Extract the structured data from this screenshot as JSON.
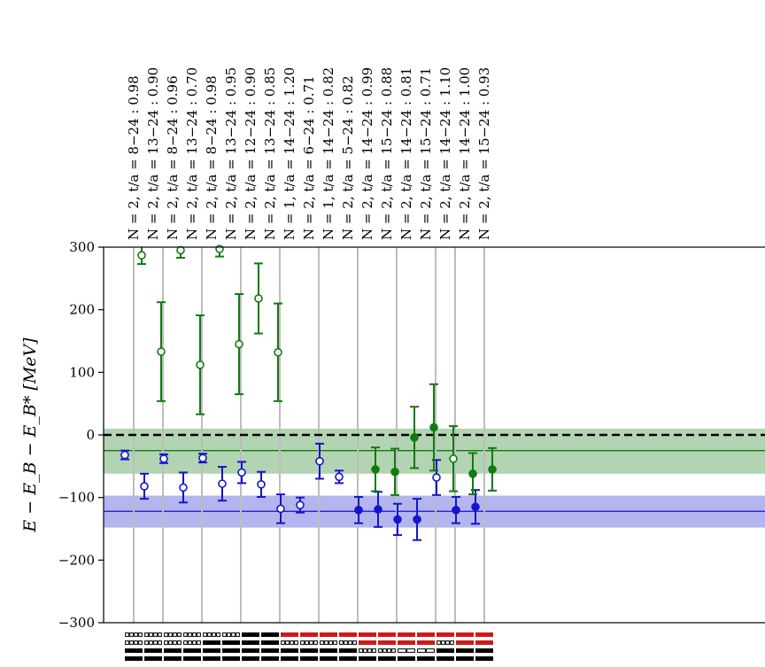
{
  "chart_data": {
    "type": "scatter",
    "ylabel": "E − E_B − E_B* [MeV]",
    "ylim": [
      -300,
      300
    ],
    "yticks": [
      -300,
      -200,
      -100,
      0,
      100,
      200,
      300
    ],
    "ytick_labels": [
      "−300",
      "−200",
      "−100",
      "0",
      "100",
      "200",
      "300"
    ],
    "categories": [
      "N = 2, t/a = 8−24 :  0.98",
      "N = 2, t/a = 13−24 :  0.90",
      "N = 2, t/a = 8−24 :  0.96",
      "N = 2, t/a = 13−24 :  0.70",
      "N = 2, t/a = 8−24 :  0.98",
      "N = 2, t/a = 13−24 :  0.95",
      "N = 2, t/a = 12−24 :  0.90",
      "N = 2, t/a = 13−24 :  0.85",
      "N = 1, t/a = 14−24 :  1.20",
      "N = 2, t/a = 6−24 :  0.71",
      "N = 1, t/a = 14−24 :  0.82",
      "N = 2, t/a = 5−24 :  0.82",
      "N = 2, t/a = 14−24 :  0.99",
      "N = 2, t/a = 15−24 :  0.88",
      "N = 2, t/a = 14−24 :  0.81",
      "N = 2, t/a = 15−24 :  0.71",
      "N = 2, t/a = 14−24 :  1.10",
      "N = 2, t/a = 14−24 :  1.00",
      "N = 2, t/a = 15−24 :  0.93"
    ],
    "series": [
      {
        "color": "#1515cc",
        "points": [
          {
            "y": -32,
            "err": 7,
            "filled": false
          },
          {
            "y": -82,
            "err": 20,
            "filled": false
          },
          {
            "y": -38,
            "err": 7,
            "filled": false
          },
          {
            "y": -84,
            "err": 24,
            "filled": false
          },
          {
            "y": -37,
            "err": 7,
            "filled": false
          },
          {
            "y": -78,
            "err": 27,
            "filled": false
          },
          {
            "y": -60,
            "err": 17,
            "filled": false
          },
          {
            "y": -79,
            "err": 20,
            "filled": false
          },
          {
            "y": -118,
            "err": 23,
            "filled": false
          },
          {
            "y": -112,
            "err": 12,
            "filled": false
          },
          {
            "y": -42,
            "err": 28,
            "filled": false
          },
          {
            "y": -67,
            "err": 10,
            "filled": false
          },
          {
            "y": -120,
            "err": 21,
            "filled": true
          },
          {
            "y": -119,
            "err": 28,
            "filled": true
          },
          {
            "y": -135,
            "err": 25,
            "filled": true
          },
          {
            "y": -135,
            "err": 33,
            "filled": true
          },
          {
            "y": -68,
            "err": 28,
            "filled": false
          },
          {
            "y": -120,
            "err": 21,
            "filled": true
          },
          {
            "y": -115,
            "err": 27,
            "filled": true
          }
        ]
      },
      {
        "color": "#117a11",
        "points": [
          {
            "y": 287,
            "err": 14,
            "filled": false
          },
          {
            "y": 133,
            "err": 79,
            "filled": false
          },
          {
            "y": 295,
            "err": 12,
            "filled": false
          },
          {
            "y": 112,
            "err": 79,
            "filled": false
          },
          {
            "y": 297,
            "err": 12,
            "filled": false
          },
          {
            "y": 145,
            "err": 80,
            "filled": false
          },
          {
            "y": 218,
            "err": 56,
            "filled": false
          },
          {
            "y": 132,
            "err": 78,
            "filled": false
          },
          null,
          null,
          null,
          null,
          {
            "y": -55,
            "err": 35,
            "filled": true
          },
          {
            "y": -59,
            "err": 37,
            "filled": true
          },
          {
            "y": -4,
            "err": 49,
            "filled": true
          },
          {
            "y": 12,
            "err": 69,
            "filled": true
          },
          {
            "y": -38,
            "err": 52,
            "filled": false
          },
          {
            "y": -62,
            "err": 33,
            "filled": true
          },
          {
            "y": -55,
            "err": 34,
            "filled": true
          }
        ]
      }
    ],
    "bands": [
      {
        "color": "#117a11",
        "center": -25,
        "low": -62,
        "high": 10
      },
      {
        "color": "#1515cc",
        "center": -122,
        "low": -148,
        "high": -97
      }
    ],
    "reference_line": {
      "y": 0,
      "style": "dashed",
      "color": "#000000"
    },
    "operator_codes": [
      [
        "w4",
        "w4",
        "b",
        "b"
      ],
      [
        "w4",
        "w4",
        "b",
        "b"
      ],
      [
        "w4",
        "w4",
        "b",
        "b"
      ],
      [
        "w4",
        "w4",
        "b",
        "b"
      ],
      [
        "w4",
        "b",
        "b",
        "b"
      ],
      [
        "w4",
        "b",
        "b",
        "b"
      ],
      [
        "b",
        "b",
        "b",
        "b"
      ],
      [
        "b",
        "b",
        "b",
        "b"
      ],
      [
        "r",
        "w4",
        "b",
        "b"
      ],
      [
        "r",
        "w4",
        "b",
        "b"
      ],
      [
        "r",
        "w4",
        "b",
        "b"
      ],
      [
        "r",
        "w4",
        "b",
        "b"
      ],
      [
        "r",
        "r",
        "w4",
        "b"
      ],
      [
        "r",
        "r",
        "w4",
        "b"
      ],
      [
        "r",
        "r",
        "w2",
        "b"
      ],
      [
        "r",
        "r",
        "w2",
        "b"
      ],
      [
        "r",
        "w4",
        "b",
        "b"
      ],
      [
        "r",
        "r",
        "b",
        "b"
      ],
      [
        "r",
        "r",
        "b",
        "b"
      ]
    ],
    "group_dividers_after": [
      1,
      3,
      5,
      7,
      9,
      11,
      13,
      15,
      16
    ],
    "grid": true
  }
}
